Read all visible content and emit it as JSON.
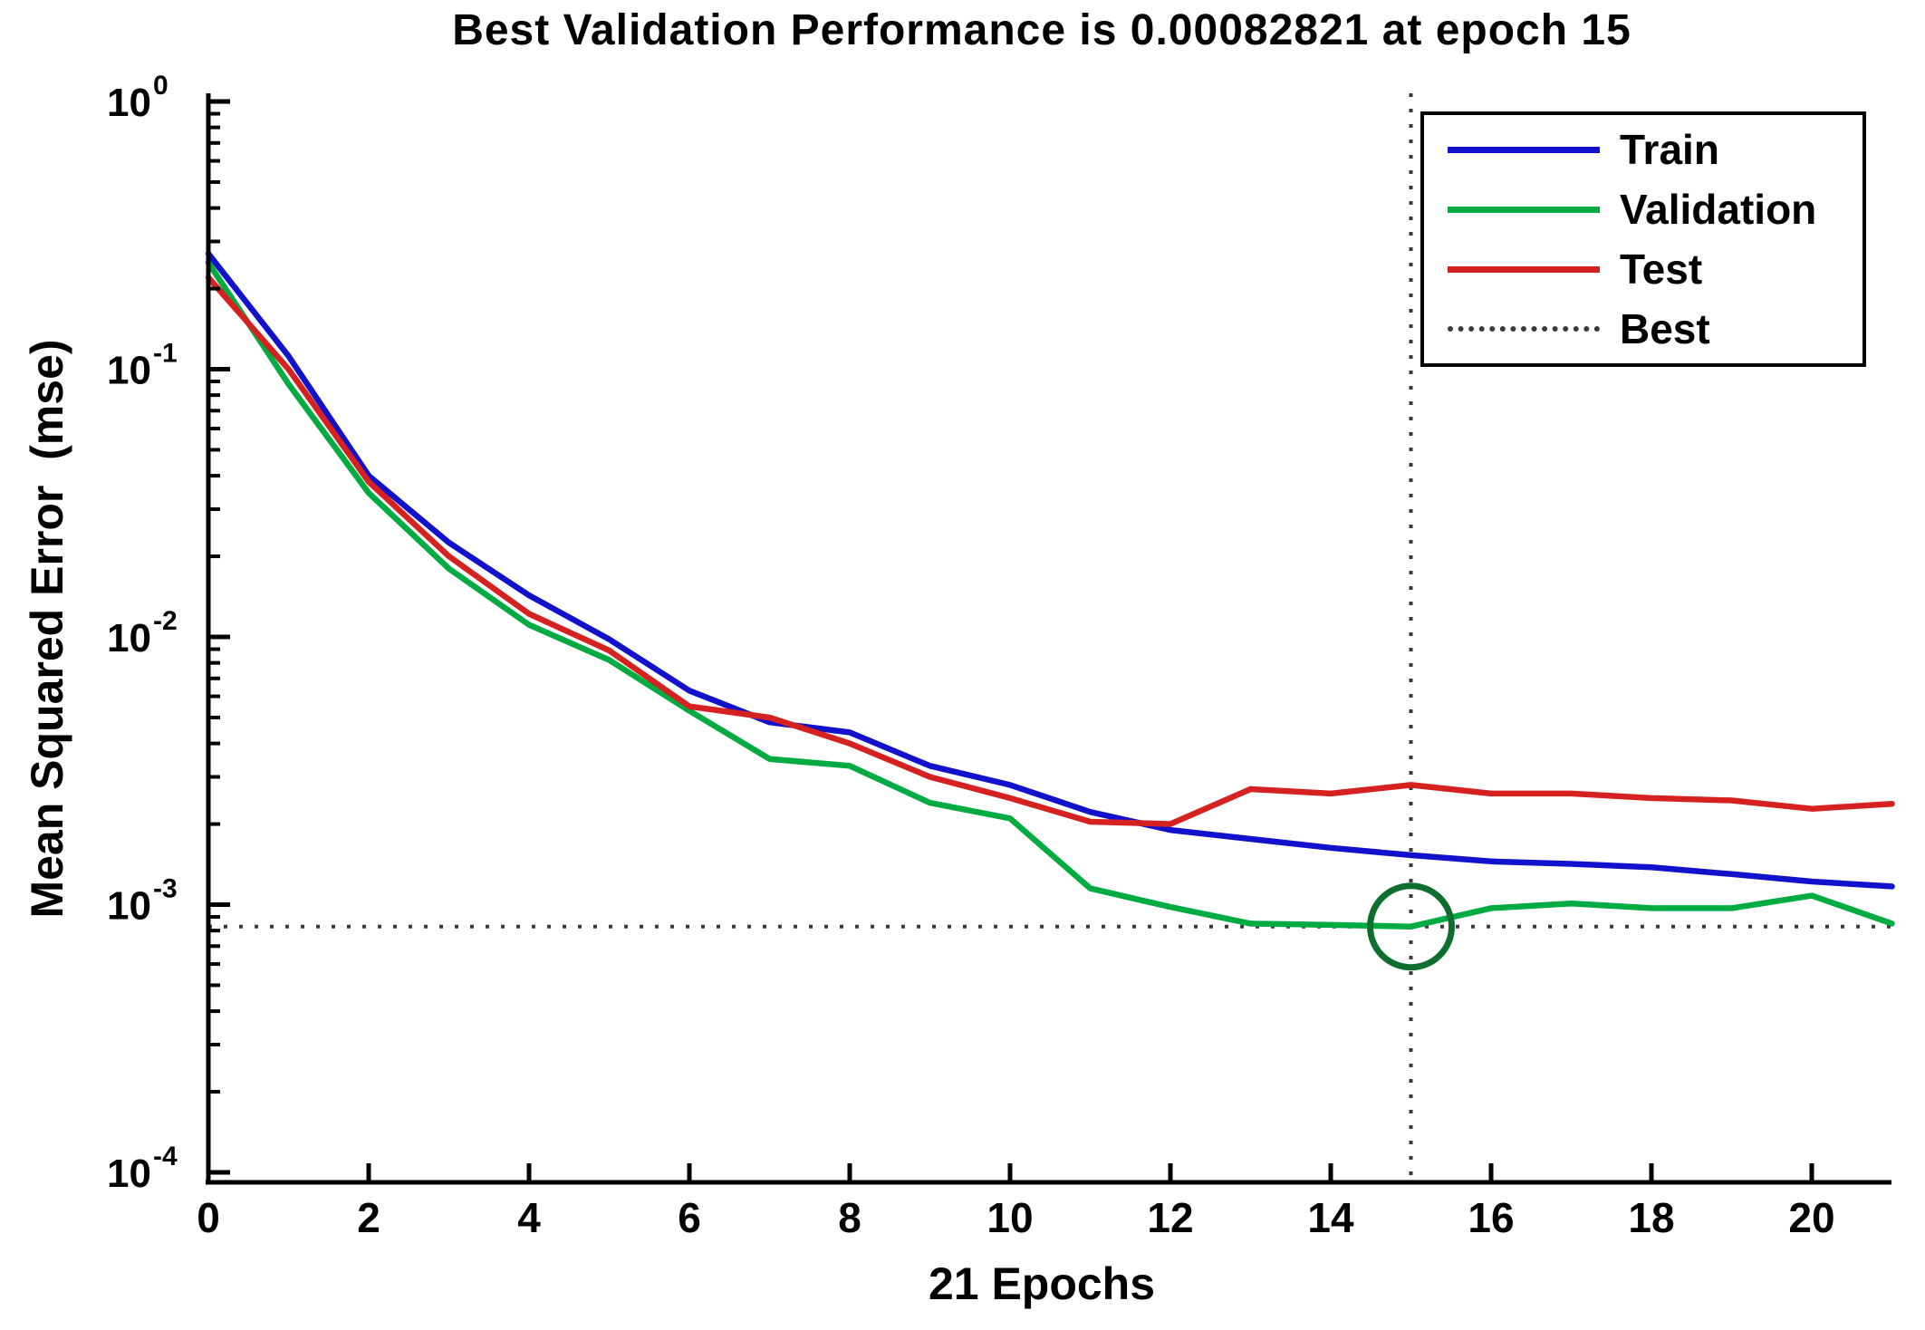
{
  "chart_data": {
    "type": "line",
    "title": "Best Validation Performance is 0.00082821 at epoch 15",
    "xlabel": "21 Epochs",
    "ylabel": "Mean Squared Error  (mse)",
    "yscale": "log",
    "grid": false,
    "xlim": [
      0,
      21
    ],
    "ylim": [
      0.0001,
      1
    ],
    "xticks": [
      0,
      2,
      4,
      6,
      8,
      10,
      12,
      14,
      16,
      18,
      20
    ],
    "ytick_exponents": [
      0,
      -1,
      -2,
      -3,
      -4
    ],
    "epochs": [
      0,
      1,
      2,
      3,
      4,
      5,
      6,
      7,
      8,
      9,
      10,
      11,
      12,
      13,
      14,
      15,
      16,
      17,
      18,
      19,
      20,
      21
    ],
    "series": [
      {
        "name": "Train",
        "color": "#1212cc",
        "values": [
          0.27,
          0.112,
          0.04,
          0.0225,
          0.0143,
          0.0098,
          0.0063,
          0.0048,
          0.0044,
          0.0033,
          0.0028,
          0.00222,
          0.0019,
          0.00176,
          0.00163,
          0.00153,
          0.00145,
          0.00142,
          0.00138,
          0.0013,
          0.00122,
          0.00117
        ]
      },
      {
        "name": "Validation",
        "color": "#00ab41",
        "values": [
          0.25,
          0.088,
          0.0345,
          0.018,
          0.0111,
          0.0082,
          0.0053,
          0.0035,
          0.0033,
          0.0024,
          0.0021,
          0.00115,
          0.00098,
          0.00085,
          0.00084,
          0.00082821,
          0.00097,
          0.00101,
          0.00097,
          0.00097,
          0.00108,
          0.00085
        ]
      },
      {
        "name": "Test",
        "color": "#d52221",
        "values": [
          0.22,
          0.1,
          0.038,
          0.02,
          0.0122,
          0.0089,
          0.0055,
          0.005,
          0.004,
          0.003,
          0.0025,
          0.00204,
          0.002,
          0.0027,
          0.0026,
          0.0028,
          0.0026,
          0.0026,
          0.0025,
          0.00245,
          0.00228,
          0.00238
        ]
      }
    ],
    "best": {
      "epoch": 15,
      "value": 0.00082821,
      "value_str": "0.00082821",
      "label": "Best",
      "line_color": "#3a3a3a",
      "circle_color": "#0e6e2e"
    },
    "legend_position": "top-right",
    "legend_items": [
      {
        "label": "Train",
        "type": "line",
        "color": "#1212cc"
      },
      {
        "label": "Validation",
        "type": "line",
        "color": "#00ab41"
      },
      {
        "label": "Test",
        "type": "line",
        "color": "#d52221"
      },
      {
        "label": "Best",
        "type": "dotted",
        "color": "#3a3a3a"
      }
    ]
  }
}
